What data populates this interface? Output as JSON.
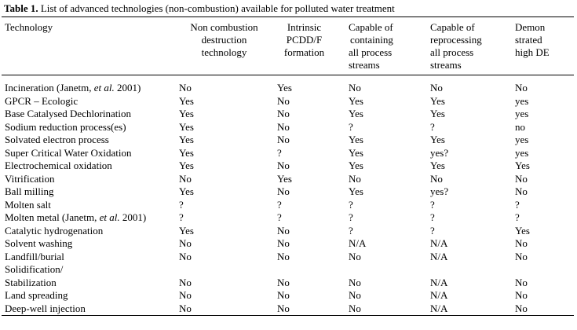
{
  "caption": {
    "label": "Table 1.",
    "text": " List of advanced technologies (non-combustion) available for  polluted water treatment"
  },
  "headers": [
    [
      "Technology"
    ],
    [
      "Non combustion",
      "destruction",
      "technology"
    ],
    [
      "Intrinsic",
      "PCDD/F",
      "formation"
    ],
    [
      "Capable of",
      "containing",
      "all process",
      "streams"
    ],
    [
      "Capable of",
      "reprocessing",
      "all process",
      "streams"
    ],
    [
      "Demon",
      "strated",
      "high DE"
    ]
  ],
  "rows": [
    [
      "Incineration (Janetm, et al. 2001)",
      "No",
      "Yes",
      "No",
      "No",
      "No"
    ],
    [
      "GPCR – Ecologic",
      "Yes",
      "No",
      "Yes",
      "Yes",
      "yes"
    ],
    [
      "Base Catalysed Dechlorination",
      "Yes",
      "No",
      "Yes",
      "Yes",
      "yes"
    ],
    [
      "Sodium reduction process(es)",
      "Yes",
      "No",
      "?",
      "?",
      "no"
    ],
    [
      "Solvated electron process",
      "Yes",
      "No",
      "Yes",
      "Yes",
      "yes"
    ],
    [
      "Super Critical Water Oxidation",
      "Yes",
      "?",
      "Yes",
      "yes?",
      "yes"
    ],
    [
      "Electrochemical oxidation",
      "Yes",
      "No",
      "Yes",
      "Yes",
      "Yes"
    ],
    [
      "Vitrification",
      "No",
      "Yes",
      "No",
      "No",
      "No"
    ],
    [
      "Ball milling",
      "Yes",
      "No",
      "Yes",
      "yes?",
      "No"
    ],
    [
      "Molten salt",
      "?",
      "?",
      "?",
      "?",
      "?"
    ],
    [
      "Molten metal (Janetm, et al. 2001)",
      "?",
      "?",
      "?",
      "?",
      "?"
    ],
    [
      "Catalytic hydrogenation",
      "Yes",
      "No",
      "?",
      "?",
      "Yes"
    ],
    [
      "Solvent washing",
      "No",
      "No",
      "N/A",
      "N/A",
      "No"
    ],
    [
      "Landfill/burial",
      "No",
      "No",
      "No",
      "N/A",
      "No"
    ],
    [
      "Solidification/",
      "",
      "",
      "",
      "",
      ""
    ],
    [
      "Stabilization",
      "No",
      "No",
      "No",
      "N/A",
      "No"
    ],
    [
      "Land spreading",
      "No",
      "No",
      "No",
      "N/A",
      "No"
    ],
    [
      "Deep-well injection",
      "No",
      "No",
      "No",
      "N/A",
      "No"
    ]
  ]
}
